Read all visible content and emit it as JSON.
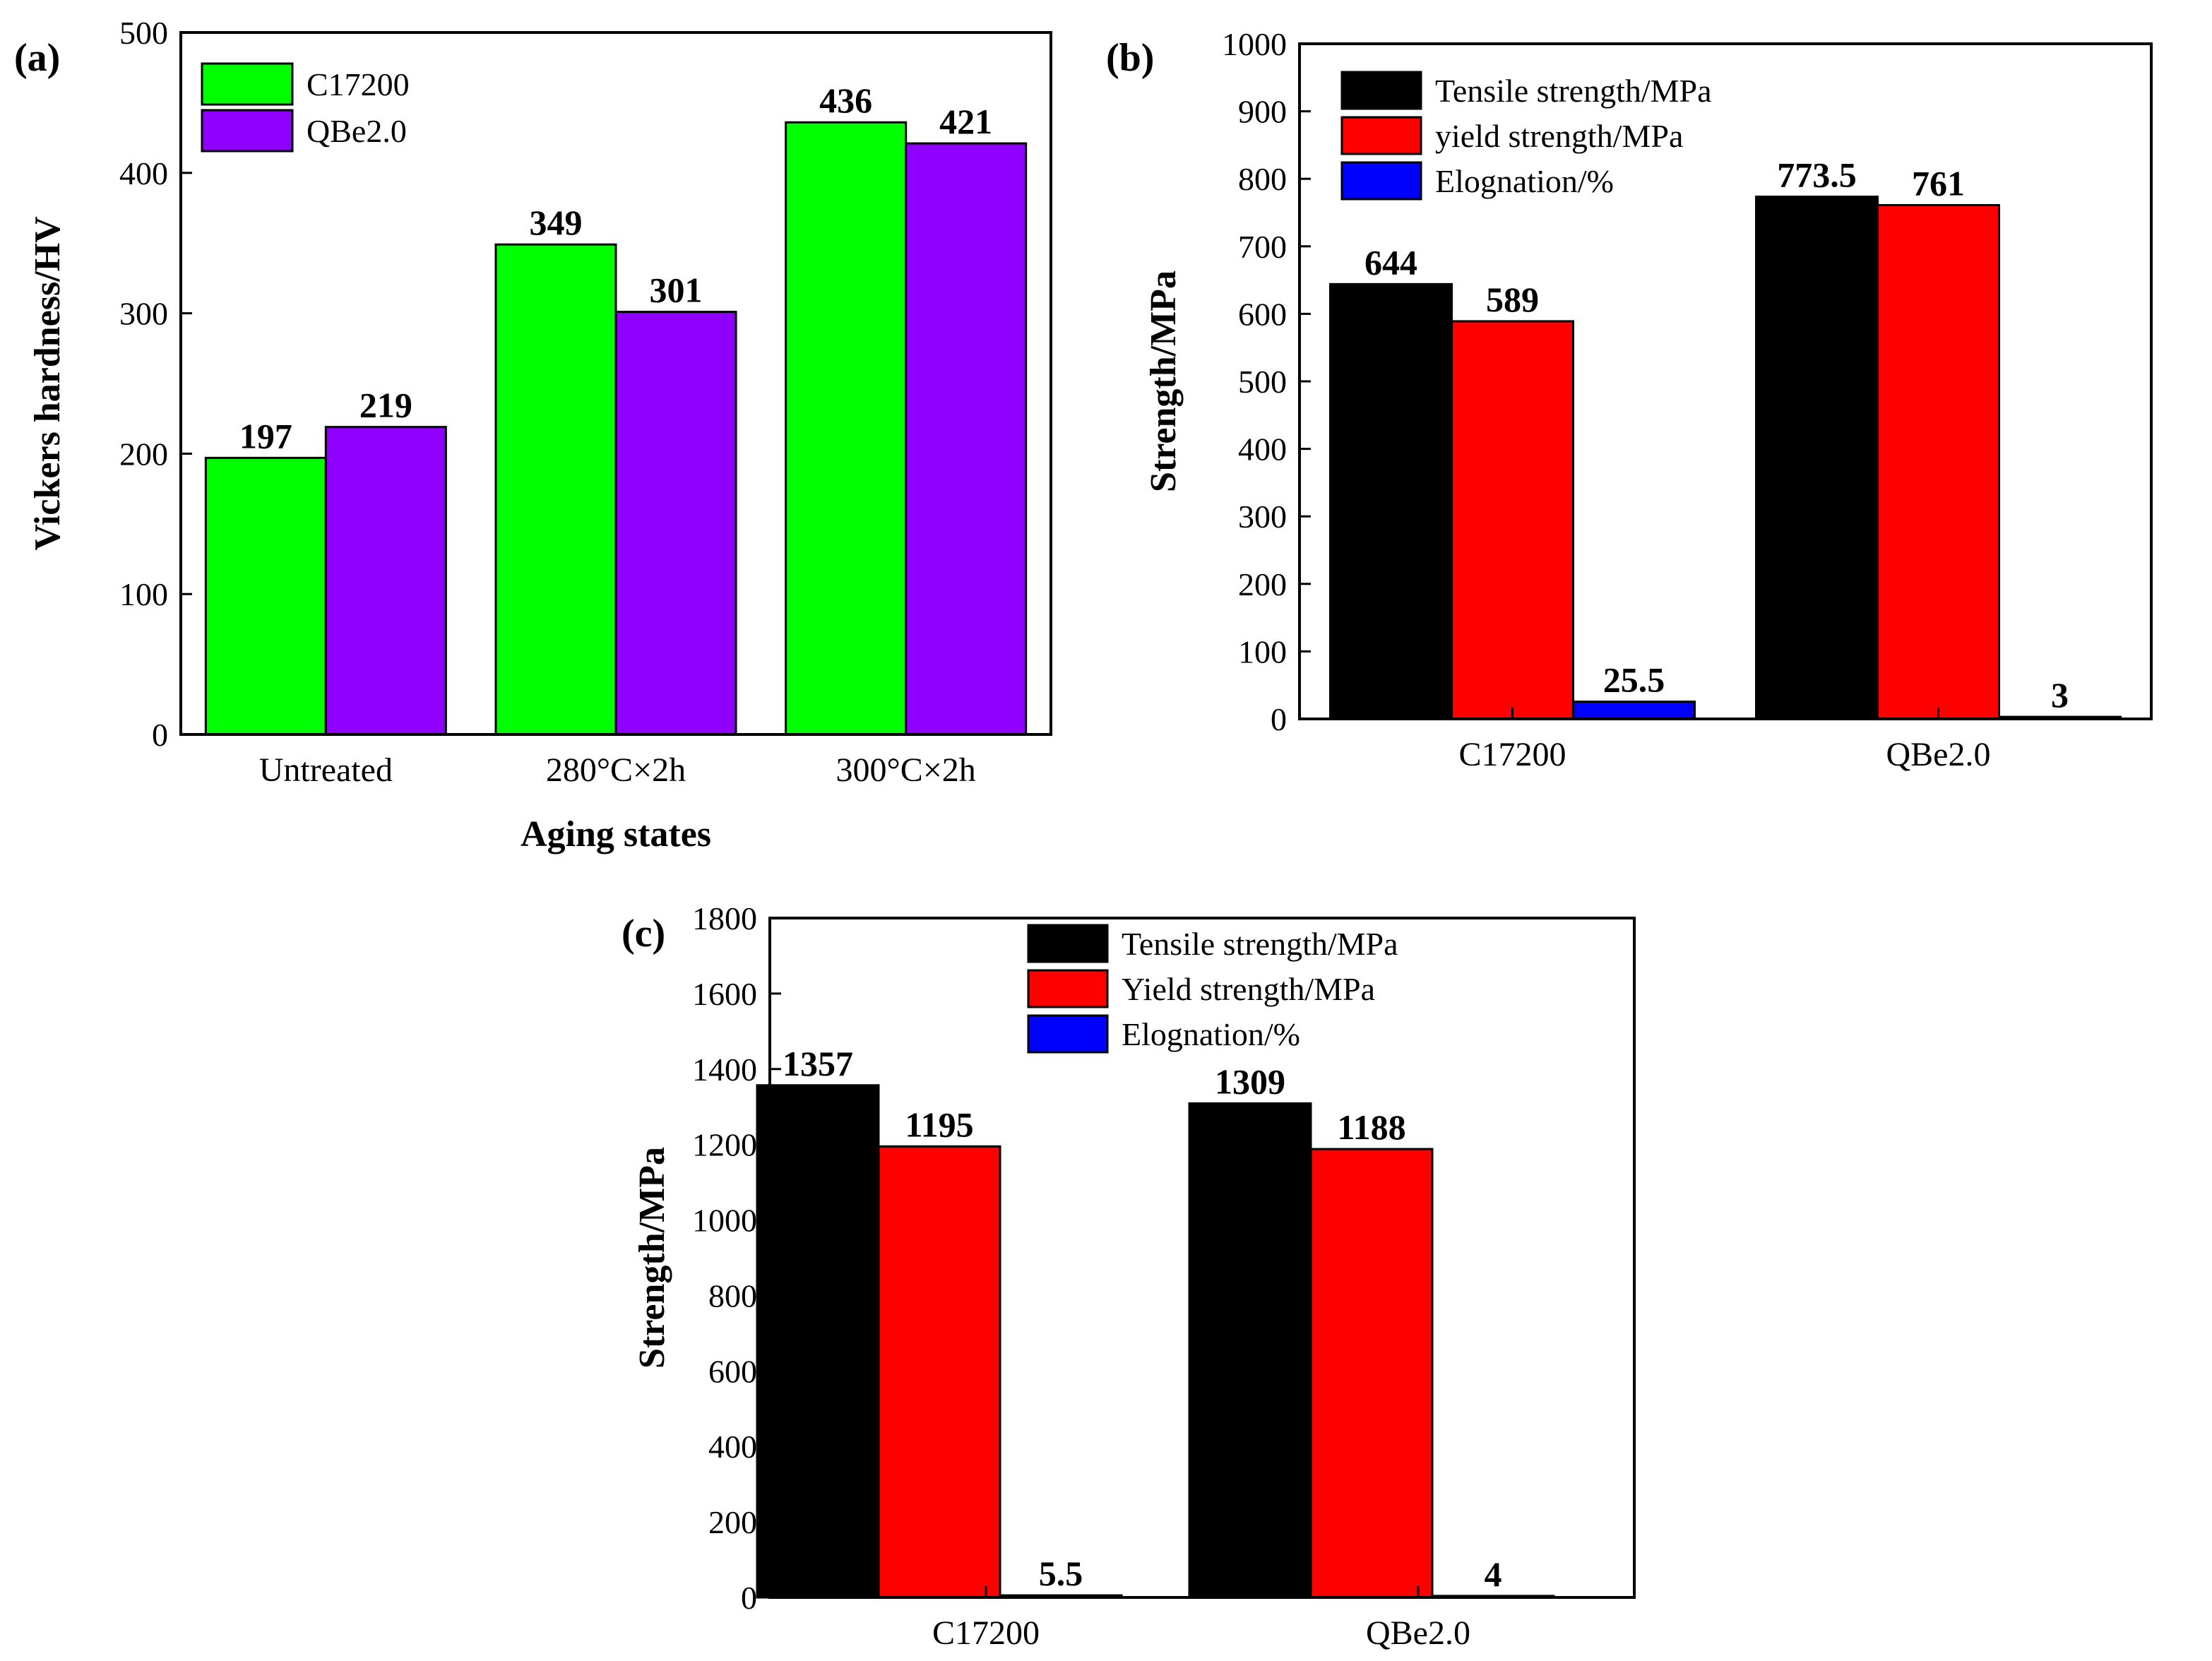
{
  "chart_data": [
    {
      "id": "a",
      "type": "bar",
      "panel_label": "(a)",
      "xlabel": "Aging states",
      "ylabel": "Vickers hardness/HV",
      "ylim": [
        0,
        500
      ],
      "yticks": [
        0,
        100,
        200,
        300,
        400,
        500
      ],
      "categories": [
        "Untreated",
        "280°C×2h",
        "300°C×2h"
      ],
      "series": [
        {
          "name": "C17200",
          "color": "#00ff00",
          "values": [
            197,
            349,
            436
          ],
          "labels": [
            "197",
            "349",
            "436"
          ]
        },
        {
          "name": "QBe2.0",
          "color": "#8f00ff",
          "values": [
            219,
            301,
            421
          ],
          "labels": [
            "219",
            "301",
            "421"
          ]
        }
      ],
      "legend": "top-left",
      "grid": false
    },
    {
      "id": "b",
      "type": "bar",
      "panel_label": "(b)",
      "xlabel": "",
      "ylabel": "Strength/MPa",
      "ylim": [
        0,
        1000
      ],
      "yticks": [
        0,
        100,
        200,
        300,
        400,
        500,
        600,
        700,
        800,
        900,
        1000
      ],
      "categories": [
        "C17200",
        "QBe2.0"
      ],
      "series": [
        {
          "name": "Tensile strength/MPa",
          "color": "#000000",
          "values": [
            644,
            773.5
          ],
          "labels": [
            "644",
            "773.5"
          ]
        },
        {
          "name": "yield strength/MPa",
          "color": "#ff0000",
          "values": [
            589,
            761
          ],
          "labels": [
            "589",
            "761"
          ]
        },
        {
          "name": "Elognation/%",
          "color": "#0000ff",
          "values": [
            25.5,
            3
          ],
          "labels": [
            "25.5",
            "3"
          ]
        }
      ],
      "legend": "top-left",
      "grid": false
    },
    {
      "id": "c",
      "type": "bar",
      "panel_label": "(c)",
      "xlabel": "",
      "ylabel": "Strength/MPa",
      "ylim": [
        0,
        1800
      ],
      "yticks": [
        0,
        200,
        400,
        600,
        800,
        1000,
        1200,
        1400,
        1600,
        1800
      ],
      "categories": [
        "C17200",
        "QBe2.0"
      ],
      "series": [
        {
          "name": "Tensile strength/MPa",
          "color": "#000000",
          "values": [
            1357,
            1309
          ],
          "labels": [
            "1357",
            "1309"
          ]
        },
        {
          "name": "Yield strength/MPa",
          "color": "#ff0000",
          "values": [
            1195,
            1188
          ],
          "labels": [
            "1195",
            "1188"
          ]
        },
        {
          "name": "Elognation/%",
          "color": "#0000ff",
          "values": [
            5.5,
            4
          ],
          "labels": [
            "5.5",
            "4"
          ]
        }
      ],
      "legend": "top-center",
      "grid": false
    }
  ]
}
